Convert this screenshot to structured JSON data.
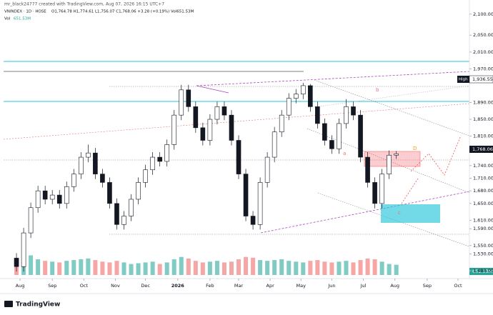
{
  "header": {
    "credit": "mr_black24777 created with TradingView.com, Aug 07, 2026 16:15 UTC+7",
    "symbol": "VNINDEX · 1D · HOSE",
    "ohlc": "O1,764.78 H1,774.61 L1,756.07 C1,768.06 +3.28 (+0.19%) Vol651.53M",
    "vol_label": "Vol",
    "vol_value": "651.53M",
    "logo": "TradingView"
  },
  "chart_data": {
    "type": "candlestick",
    "xlim": [
      -1.5,
      63
    ],
    "xticks": [
      {
        "value": 0.5,
        "label": "Aug"
      },
      {
        "value": 5,
        "label": "Sep"
      },
      {
        "value": 9.4,
        "label": "Oct"
      },
      {
        "value": 13.8,
        "label": "Nov"
      },
      {
        "value": 18,
        "label": "Dec"
      },
      {
        "value": 22.5,
        "label": "2026"
      },
      {
        "value": 27,
        "label": "Feb"
      },
      {
        "value": 31,
        "label": "Mar"
      },
      {
        "value": 35.4,
        "label": "Apr"
      },
      {
        "value": 39.7,
        "label": "May"
      },
      {
        "value": 44,
        "label": "Jun"
      },
      {
        "value": 48.4,
        "label": "Jul"
      },
      {
        "value": 52.8,
        "label": "Aug"
      },
      {
        "value": 57.3,
        "label": "Sep"
      },
      {
        "value": 61.6,
        "label": "Oct"
      }
    ],
    "ylim": [
      1480,
      2120
    ],
    "yticks": [
      {
        "value": 2100,
        "label": "2,100.00"
      },
      {
        "value": 2050,
        "label": "2,050.00"
      },
      {
        "value": 2010,
        "label": "2,010.00"
      },
      {
        "value": 1970,
        "label": "1,970.00"
      },
      {
        "value": 1890,
        "label": "1,890.00"
      },
      {
        "value": 1850,
        "label": "1,850.00"
      },
      {
        "value": 1810,
        "label": "1,810.00"
      },
      {
        "value": 1740,
        "label": "1,740.00"
      },
      {
        "value": 1710,
        "label": "1,710.00"
      },
      {
        "value": 1680,
        "label": "1,680.00"
      },
      {
        "value": 1650,
        "label": "1,650.00"
      },
      {
        "value": 1610,
        "label": "1,610.00"
      },
      {
        "value": 1590,
        "label": "1,590.00"
      },
      {
        "value": 1550,
        "label": "1,550.00"
      },
      {
        "value": 1530,
        "label": "1,530.00"
      },
      {
        "value": 1490,
        "label": "1,490.00"
      }
    ],
    "open": [
      1520,
      1500,
      1580,
      1640,
      1680,
      1660,
      1670,
      1650,
      1690,
      1720,
      1760,
      1770,
      1720,
      1700,
      1650,
      1600,
      1620,
      1660,
      1700,
      1730,
      1760,
      1750,
      1790,
      1860,
      1920,
      1880,
      1830,
      1800,
      1850,
      1880,
      1860,
      1800,
      1720,
      1620,
      1600,
      1700,
      1760,
      1820,
      1860,
      1900,
      1910,
      1930,
      1880,
      1840,
      1800,
      1780,
      1840,
      1880,
      1860,
      1760,
      1700,
      1650,
      1720,
      1764.78
    ],
    "high": [
      1532,
      1592,
      1652,
      1692,
      1692,
      1682,
      1682,
      1702,
      1732,
      1772,
      1790,
      1782,
      1732,
      1712,
      1662,
      1632,
      1672,
      1712,
      1742,
      1772,
      1772,
      1802,
      1872,
      1932,
      1932,
      1892,
      1842,
      1862,
      1892,
      1892,
      1872,
      1812,
      1732,
      1632,
      1712,
      1772,
      1832,
      1872,
      1912,
      1922,
      1936.55,
      1934,
      1892,
      1852,
      1812,
      1852,
      1898,
      1892,
      1872,
      1772,
      1712,
      1732,
      1776,
      1774.61
    ],
    "low": [
      1488,
      1488,
      1568,
      1628,
      1648,
      1648,
      1638,
      1638,
      1678,
      1708,
      1748,
      1708,
      1688,
      1638,
      1588,
      1588,
      1608,
      1648,
      1688,
      1718,
      1738,
      1738,
      1778,
      1848,
      1868,
      1818,
      1788,
      1788,
      1838,
      1848,
      1788,
      1708,
      1608,
      1588,
      1588,
      1688,
      1748,
      1808,
      1848,
      1888,
      1898,
      1868,
      1828,
      1788,
      1768,
      1768,
      1828,
      1848,
      1748,
      1688,
      1638,
      1638,
      1708,
      1756.07
    ],
    "close": [
      1500,
      1580,
      1640,
      1680,
      1660,
      1670,
      1650,
      1690,
      1720,
      1760,
      1770,
      1720,
      1700,
      1650,
      1600,
      1620,
      1660,
      1700,
      1730,
      1760,
      1750,
      1790,
      1860,
      1920,
      1880,
      1830,
      1800,
      1850,
      1880,
      1860,
      1800,
      1720,
      1620,
      1600,
      1700,
      1760,
      1820,
      1860,
      1900,
      1910,
      1930,
      1880,
      1840,
      1800,
      1780,
      1840,
      1880,
      1860,
      1760,
      1700,
      1650,
      1720,
      1764.78,
      1768.06
    ],
    "volume": [
      1100,
      1300,
      1250,
      1000,
      900,
      850,
      800,
      900,
      950,
      1000,
      1050,
      950,
      850,
      800,
      900,
      800,
      700,
      750,
      800,
      850,
      700,
      800,
      1000,
      1150,
      1050,
      900,
      800,
      850,
      900,
      800,
      850,
      1000,
      1150,
      1100,
      950,
      900,
      950,
      1000,
      900,
      850,
      800,
      900,
      950,
      850,
      800,
      850,
      900,
      800,
      950,
      1050,
      1000,
      850,
      700,
      651.53
    ],
    "volume_lim": [
      0,
      2500
    ],
    "up_color": "#ffffff",
    "down_color": "#131722",
    "wick_color": "#131722",
    "volume_up_color": "#80cbc4",
    "volume_down_color": "#f7a6a6",
    "last_price_label": "1,768.06",
    "high_label": "High",
    "high_value_label": "1,936.55",
    "volume_last_label": "651.53M",
    "annotations": [
      "b",
      "a",
      "c",
      "D"
    ]
  }
}
